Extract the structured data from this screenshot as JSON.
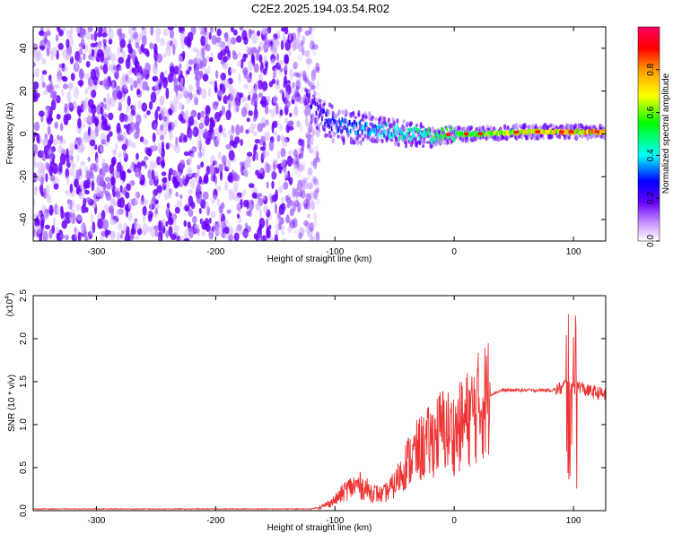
{
  "title": "C2E2.2025.194.03.54.R02",
  "chart_data": [
    {
      "type": "heatmap",
      "title": "C2E2.2025.194.03.54.R02",
      "xlabel": "Height of straight line (km)",
      "ylabel": "Frequency (Hz)",
      "xlim": [
        -353,
        127
      ],
      "ylim": [
        -50,
        50
      ],
      "xticks": [
        -300,
        -200,
        -100,
        0,
        100
      ],
      "yticks": [
        -40,
        -20,
        0,
        20,
        40
      ],
      "colorbar": {
        "label": "Normalized spectral amplitude",
        "range": [
          0,
          1
        ],
        "ticks": [
          0.0,
          0.2,
          0.4,
          0.6,
          0.8
        ],
        "colors": [
          "#ffffff",
          "#cc99ff",
          "#6600ff",
          "#0000ff",
          "#00ffff",
          "#00ff00",
          "#ffff00",
          "#ff9900",
          "#ff0000",
          "#ff0066"
        ]
      },
      "noise_region": {
        "x": [
          -353,
          -120
        ],
        "amplitude": 0.15
      },
      "signal_track": {
        "x": [
          -125,
          -110,
          -100,
          -80,
          -60,
          -40,
          -20,
          0,
          20,
          60,
          100,
          127
        ],
        "frequency": [
          18,
          8,
          4,
          3,
          2,
          0,
          -1,
          0,
          0,
          1,
          1,
          1
        ],
        "amplitude": [
          0.2,
          0.25,
          0.3,
          0.35,
          0.4,
          0.45,
          0.5,
          0.55,
          0.6,
          0.7,
          0.75,
          0.8
        ]
      }
    },
    {
      "type": "line",
      "xlabel": "Height of straight line (km)",
      "ylabel": "SNR (10 * v/v)",
      "y_multiplier": "(x10",
      "y_multiplier_exp": "4",
      "y_multiplier_close": ")",
      "xlim": [
        -353,
        127
      ],
      "ylim": [
        0,
        2.5
      ],
      "xticks": [
        -300,
        -200,
        -100,
        0,
        100
      ],
      "yticks": [
        0.0,
        0.5,
        1.0,
        1.5,
        2.0,
        2.5
      ],
      "series": [
        {
          "color": "#ee3333",
          "x": [
            -353,
            -120,
            -110,
            -100,
            -90,
            -80,
            -70,
            -60,
            -50,
            -40,
            -30,
            -20,
            -10,
            0,
            10,
            20,
            30,
            40,
            60,
            80,
            90,
            95,
            100,
            105,
            110,
            127
          ],
          "y": [
            0.02,
            0.02,
            0.05,
            0.12,
            0.25,
            0.3,
            0.22,
            0.18,
            0.3,
            0.55,
            0.7,
            0.8,
            0.95,
            0.9,
            1.05,
            1.2,
            1.35,
            1.4,
            1.4,
            1.4,
            1.42,
            1.5,
            1.4,
            1.45,
            1.4,
            1.35
          ]
        }
      ]
    }
  ]
}
